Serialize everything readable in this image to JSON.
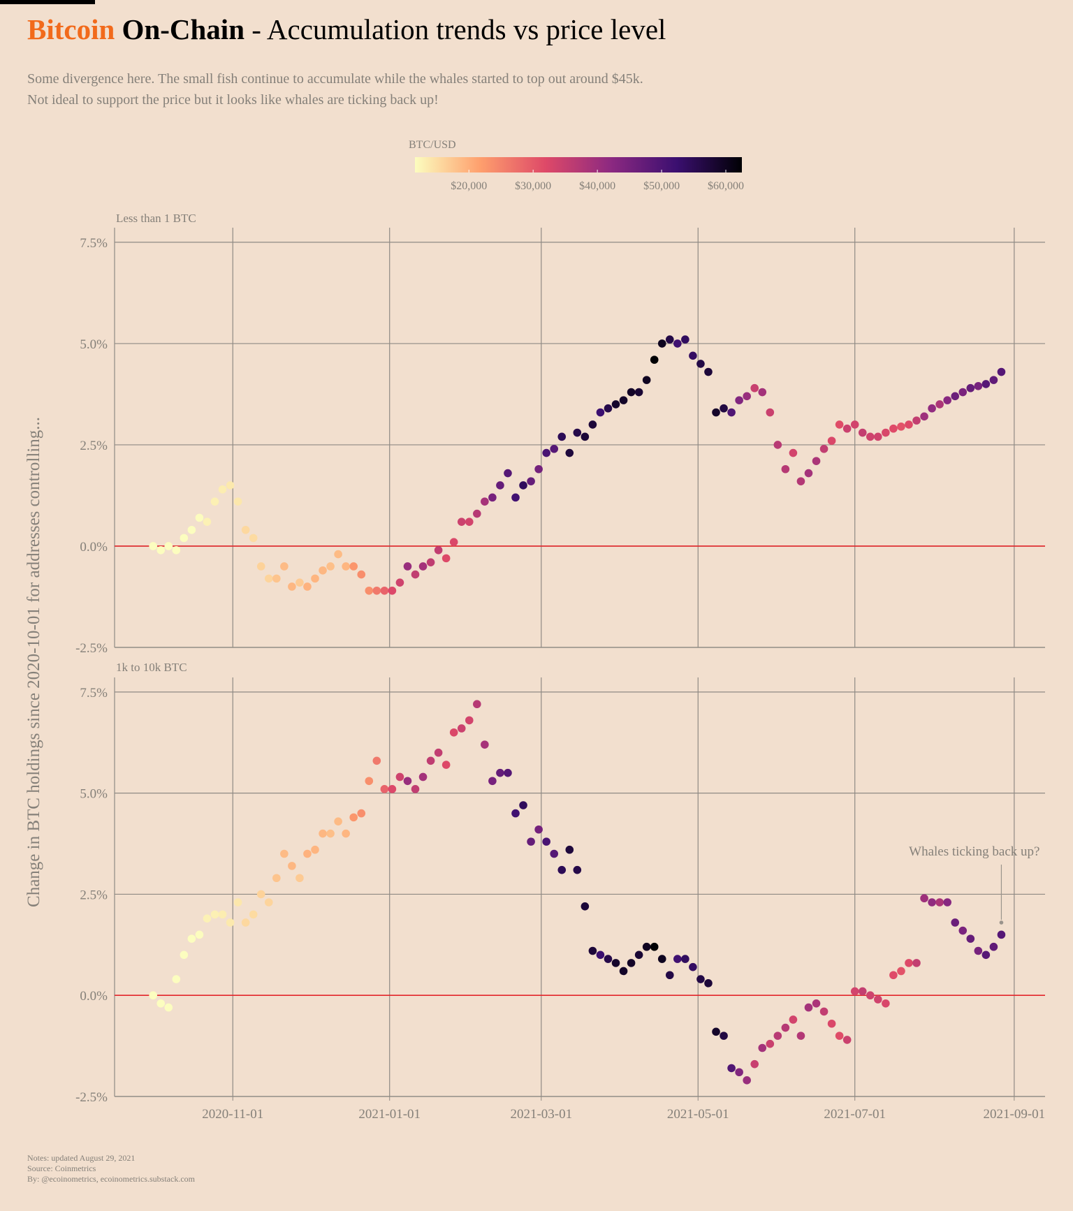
{
  "chart_data": {
    "type": "scatter",
    "title_highlight": "Bitcoin",
    "title_brand": "On-Chain",
    "title": "- Accumulation trends vs price level",
    "subtitle": [
      "Some divergence here. The small fish continue to accumulate while the whales started to top out around $45k.",
      "Not ideal to support the price but it looks like whales are ticking back up!"
    ],
    "y_label": "Change in BTC holdings since 2020-10-01 for addresses controlling...",
    "color_label": "BTC/USD",
    "color_scale": [
      "#fcfdbf",
      "#fe9f6d",
      "#de4968",
      "#8c2981",
      "#3b0f70",
      "#000004"
    ],
    "clim": [
      11600,
      62500
    ],
    "cticks": [
      {
        "value": 20000,
        "label": "$20,000"
      },
      {
        "value": 30000,
        "label": "$30,000"
      },
      {
        "value": 40000,
        "label": "$40,000"
      },
      {
        "value": 50000,
        "label": "$50,000"
      },
      {
        "value": 60000,
        "label": "$60,000"
      }
    ],
    "x": [
      "2020-10-01",
      "2020-10-04",
      "2020-10-07",
      "2020-10-10",
      "2020-10-13",
      "2020-10-16",
      "2020-10-19",
      "2020-10-22",
      "2020-10-25",
      "2020-10-28",
      "2020-10-31",
      "2020-11-03",
      "2020-11-06",
      "2020-11-09",
      "2020-11-12",
      "2020-11-15",
      "2020-11-18",
      "2020-11-21",
      "2020-11-24",
      "2020-11-27",
      "2020-11-30",
      "2020-12-03",
      "2020-12-06",
      "2020-12-09",
      "2020-12-12",
      "2020-12-15",
      "2020-12-18",
      "2020-12-21",
      "2020-12-24",
      "2020-12-27",
      "2020-12-30",
      "2021-01-02",
      "2021-01-05",
      "2021-01-08",
      "2021-01-11",
      "2021-01-14",
      "2021-01-17",
      "2021-01-20",
      "2021-01-23",
      "2021-01-26",
      "2021-01-29",
      "2021-02-01",
      "2021-02-04",
      "2021-02-07",
      "2021-02-10",
      "2021-02-13",
      "2021-02-16",
      "2021-02-19",
      "2021-02-22",
      "2021-02-25",
      "2021-02-28",
      "2021-03-03",
      "2021-03-06",
      "2021-03-09",
      "2021-03-12",
      "2021-03-15",
      "2021-03-18",
      "2021-03-21",
      "2021-03-24",
      "2021-03-27",
      "2021-03-30",
      "2021-04-02",
      "2021-04-05",
      "2021-04-08",
      "2021-04-11",
      "2021-04-14",
      "2021-04-17",
      "2021-04-20",
      "2021-04-23",
      "2021-04-26",
      "2021-04-29",
      "2021-05-02",
      "2021-05-05",
      "2021-05-08",
      "2021-05-11",
      "2021-05-14",
      "2021-05-17",
      "2021-05-20",
      "2021-05-23",
      "2021-05-26",
      "2021-05-29",
      "2021-06-01",
      "2021-06-04",
      "2021-06-07",
      "2021-06-10",
      "2021-06-13",
      "2021-06-16",
      "2021-06-19",
      "2021-06-22",
      "2021-06-25",
      "2021-06-28",
      "2021-07-01",
      "2021-07-04",
      "2021-07-07",
      "2021-07-10",
      "2021-07-13",
      "2021-07-16",
      "2021-07-19",
      "2021-07-22",
      "2021-07-25",
      "2021-07-28",
      "2021-07-31",
      "2021-08-03",
      "2021-08-06",
      "2021-08-09",
      "2021-08-12",
      "2021-08-15",
      "2021-08-18",
      "2021-08-21",
      "2021-08-24",
      "2021-08-27"
    ],
    "price": [
      10800,
      10600,
      10600,
      11300,
      11400,
      11300,
      11700,
      12900,
      13000,
      13300,
      13800,
      14000,
      15600,
      15300,
      16300,
      16000,
      17800,
      18700,
      19200,
      17100,
      19700,
      19400,
      19200,
      18300,
      18800,
      19300,
      22800,
      23800,
      23700,
      26300,
      28900,
      32200,
      34000,
      40700,
      35500,
      39200,
      35800,
      35500,
      32100,
      32400,
      34300,
      33500,
      36900,
      38900,
      44800,
      47200,
      49100,
      51600,
      54200,
      47000,
      45100,
      50500,
      48900,
      54900,
      57200,
      56000,
      57600,
      57500,
      52300,
      55900,
      58800,
      59000,
      59100,
      58000,
      59800,
      63500,
      60000,
      56300,
      51700,
      54000,
      53600,
      56400,
      57500,
      58900,
      56700,
      49700,
      43500,
      40600,
      34700,
      39300,
      34600,
      36700,
      36900,
      33500,
      37300,
      39100,
      38300,
      35500,
      32500,
      31600,
      34500,
      33500,
      35300,
      33900,
      33800,
      32700,
      31800,
      30800,
      32100,
      35400,
      39900,
      41500,
      38200,
      42800,
      46300,
      44400,
      47000,
      44800,
      48900,
      47700,
      49000
    ],
    "series": [
      {
        "name": "Less than 1 BTC",
        "values": [
          0.0,
          -0.1,
          0.0,
          -0.1,
          0.2,
          0.4,
          0.7,
          0.6,
          1.1,
          1.4,
          1.5,
          1.1,
          0.4,
          0.2,
          -0.5,
          -0.8,
          -0.8,
          -0.5,
          -1.0,
          -0.9,
          -1.0,
          -0.8,
          -0.6,
          -0.5,
          -0.2,
          -0.5,
          -0.5,
          -0.7,
          -1.1,
          -1.1,
          -1.1,
          -1.1,
          -0.9,
          -0.5,
          -0.7,
          -0.5,
          -0.4,
          -0.1,
          -0.3,
          0.1,
          0.6,
          0.6,
          0.8,
          1.1,
          1.2,
          1.5,
          1.8,
          1.2,
          1.5,
          1.6,
          1.9,
          2.3,
          2.4,
          2.7,
          2.3,
          2.8,
          2.7,
          3.0,
          3.3,
          3.4,
          3.5,
          3.6,
          3.8,
          3.8,
          4.1,
          4.6,
          5.0,
          5.1,
          5.0,
          5.1,
          4.7,
          4.5,
          4.3,
          3.3,
          3.4,
          3.3,
          3.6,
          3.7,
          3.9,
          3.8,
          3.3,
          2.5,
          1.9,
          2.3,
          1.6,
          1.8,
          2.1,
          2.4,
          2.6,
          3.0,
          2.9,
          3.0,
          2.8,
          2.7,
          2.7,
          2.8,
          2.9,
          2.95,
          3.0,
          3.1,
          3.2,
          3.4,
          3.5,
          3.6,
          3.7,
          3.8,
          3.9,
          3.95,
          4.0,
          4.1,
          4.3
        ]
      },
      {
        "name": "1k to 10k BTC",
        "values": [
          0.0,
          -0.2,
          -0.3,
          0.4,
          1.0,
          1.4,
          1.5,
          1.9,
          2.0,
          2.0,
          1.8,
          2.3,
          1.8,
          2.0,
          2.5,
          2.3,
          2.9,
          3.5,
          3.2,
          2.9,
          3.5,
          3.6,
          4.0,
          4.0,
          4.3,
          4.0,
          4.4,
          4.5,
          5.3,
          5.8,
          5.1,
          5.1,
          5.4,
          5.3,
          5.1,
          5.4,
          5.8,
          6.0,
          5.7,
          6.5,
          6.6,
          6.8,
          7.2,
          6.2,
          5.3,
          5.5,
          5.5,
          4.5,
          4.7,
          3.8,
          4.1,
          3.8,
          3.5,
          3.1,
          3.6,
          3.1,
          2.2,
          1.1,
          1.0,
          0.9,
          0.8,
          0.6,
          0.8,
          1.0,
          1.2,
          1.2,
          0.9,
          0.5,
          0.9,
          0.9,
          0.7,
          0.4,
          0.3,
          -0.9,
          -1.0,
          -1.8,
          -1.9,
          -2.1,
          -1.7,
          -1.3,
          -1.2,
          -1.0,
          -0.8,
          -0.6,
          -1.0,
          -0.3,
          -0.2,
          -0.4,
          -0.7,
          -1.0,
          -1.1,
          0.1,
          0.1,
          0.0,
          -0.1,
          -0.2,
          0.5,
          0.6,
          0.8,
          0.8,
          2.4,
          2.3,
          2.3,
          2.3,
          1.8,
          1.6,
          1.4,
          1.1,
          1.0,
          1.2,
          1.5
        ]
      }
    ],
    "xlim": [
      "2020-09-16",
      "2021-09-13"
    ],
    "xticks": [
      "2020-11-01",
      "2021-01-01",
      "2021-03-01",
      "2021-05-01",
      "2021-07-01",
      "2021-09-01"
    ],
    "ylim": [
      -2.5,
      7.86
    ],
    "yticks": [
      {
        "value": -2.5,
        "label": "-2.5%"
      },
      {
        "value": 0,
        "label": "0.0%"
      },
      {
        "value": 2.5,
        "label": "2.5%"
      },
      {
        "value": 5,
        "label": "5.0%"
      },
      {
        "value": 7.5,
        "label": "7.5%"
      }
    ],
    "grid": true,
    "reference_line": {
      "y": 0,
      "color": "#e3262b"
    },
    "annotation": {
      "text": "Whales ticking back up?",
      "x": "2021-08-27",
      "y": 1.8,
      "series": 1
    },
    "notes": [
      "Notes: updated August 29, 2021",
      "Source: Coinmetrics",
      "By: @ecoinometrics, ecoinometrics.substack.com"
    ]
  }
}
